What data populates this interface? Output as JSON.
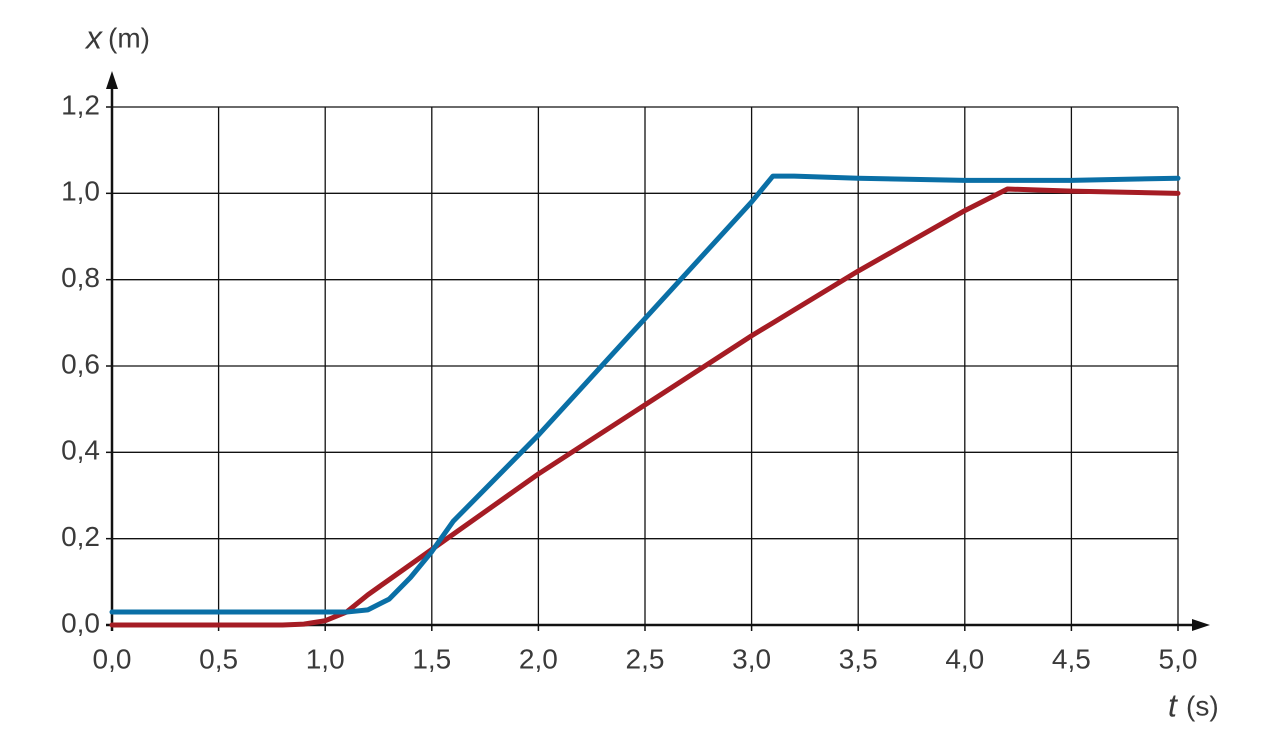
{
  "chart_data": {
    "type": "line",
    "xlabel": "t",
    "xunit": "(s)",
    "ylabel": "x",
    "yunit": "(m)",
    "x": [
      0,
      0.5,
      0.8,
      0.9,
      1.0,
      1.1,
      1.2,
      1.3,
      1.4,
      1.5,
      1.6,
      2.0,
      2.5,
      3.0,
      3.1,
      3.2,
      3.5,
      4.0,
      4.2,
      4.5,
      5.0
    ],
    "series": [
      {
        "color": "#0a6fa6",
        "values": [
          0.03,
          0.03,
          0.03,
          0.03,
          0.03,
          0.03,
          0.035,
          0.06,
          0.11,
          0.17,
          0.24,
          0.44,
          0.71,
          0.98,
          1.04,
          1.04,
          1.035,
          1.03,
          1.03,
          1.03,
          1.035
        ]
      },
      {
        "color": "#a51c24",
        "values": [
          0,
          0,
          0,
          0.002,
          0.01,
          0.03,
          0.07,
          0.105,
          0.14,
          0.175,
          0.21,
          0.35,
          0.51,
          0.67,
          0.7,
          0.73,
          0.82,
          0.96,
          1.01,
          1.005,
          1.0
        ]
      }
    ],
    "xlim": [
      0,
      5
    ],
    "ylim": [
      0,
      1.2
    ],
    "xticks": [
      {
        "value": 0,
        "label": "0,0"
      },
      {
        "value": 0.5,
        "label": "0,5"
      },
      {
        "value": 1,
        "label": "1,0"
      },
      {
        "value": 1.5,
        "label": "1,5"
      },
      {
        "value": 2,
        "label": "2,0"
      },
      {
        "value": 2.5,
        "label": "2,5"
      },
      {
        "value": 3,
        "label": "3,0"
      },
      {
        "value": 3.5,
        "label": "3,5"
      },
      {
        "value": 4,
        "label": "4,0"
      },
      {
        "value": 4.5,
        "label": "4,5"
      },
      {
        "value": 5,
        "label": "5,0"
      }
    ],
    "yticks": [
      {
        "value": 0,
        "label": "0,0"
      },
      {
        "value": 0.2,
        "label": "0,2"
      },
      {
        "value": 0.4,
        "label": "0,4"
      },
      {
        "value": 0.6,
        "label": "0,6"
      },
      {
        "value": 0.8,
        "label": "0,8"
      },
      {
        "value": 1,
        "label": "1,0"
      },
      {
        "value": 1.2,
        "label": "1,2"
      }
    ],
    "grid": true
  }
}
